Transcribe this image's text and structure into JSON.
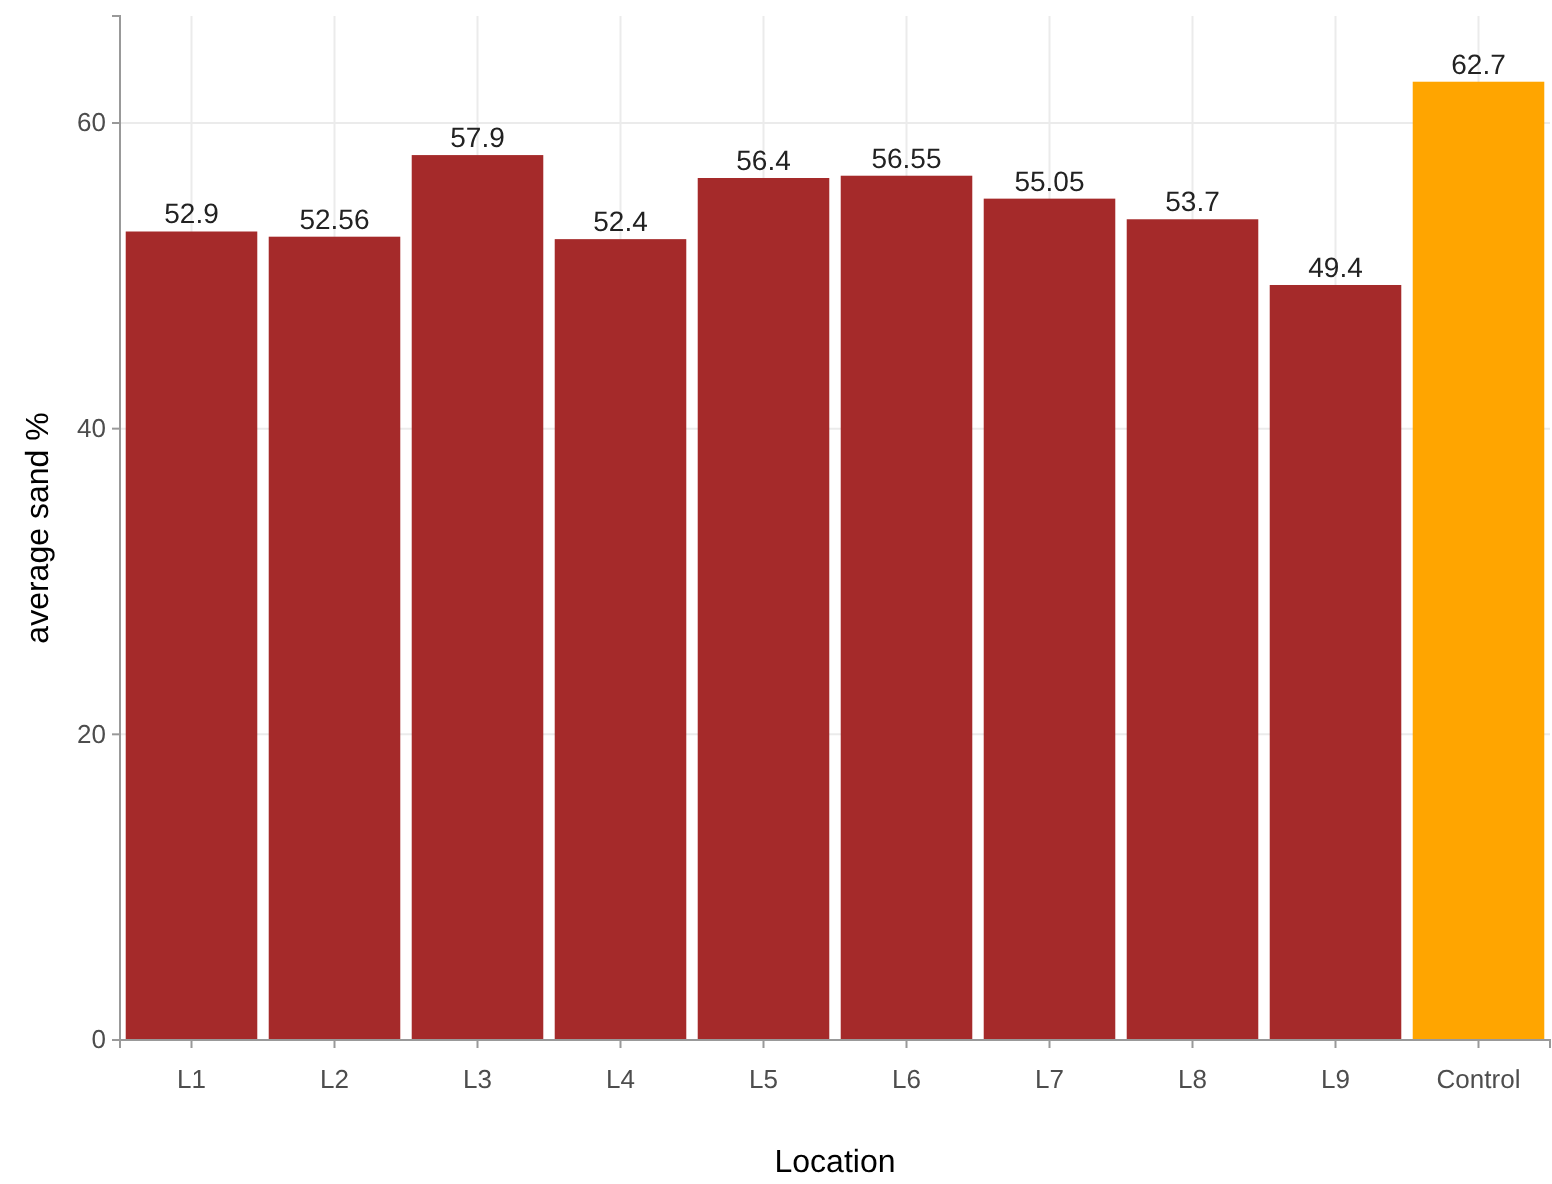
{
  "chart_data": {
    "type": "bar",
    "xlabel": "Location",
    "ylabel": "average sand %",
    "categories": [
      "L1",
      "L2",
      "L3",
      "L4",
      "L5",
      "L6",
      "L7",
      "L8",
      "L9",
      "Control"
    ],
    "values": [
      52.9,
      52.56,
      57.9,
      52.4,
      56.4,
      56.55,
      55.05,
      53.7,
      49.4,
      62.7
    ],
    "colors": [
      "#a52a2a",
      "#a52a2a",
      "#a52a2a",
      "#a52a2a",
      "#a52a2a",
      "#a52a2a",
      "#a52a2a",
      "#a52a2a",
      "#a52a2a",
      "#ffa500"
    ],
    "ylim": [
      0,
      67
    ],
    "yticks": [
      0,
      20,
      40,
      60
    ],
    "grid": true,
    "data_labels": true
  }
}
